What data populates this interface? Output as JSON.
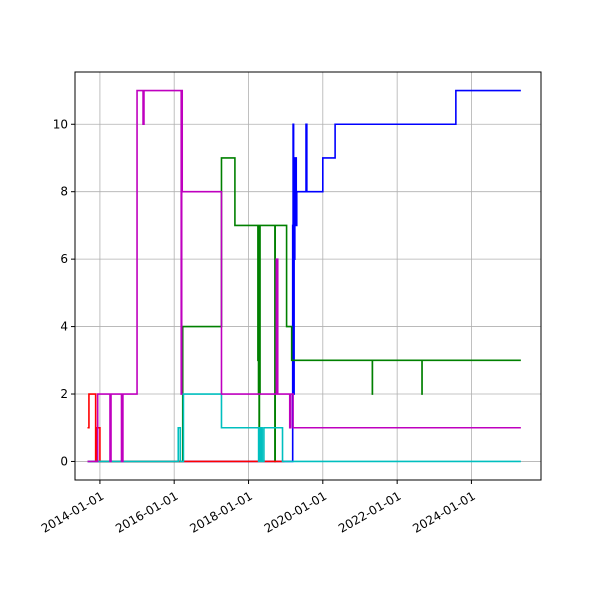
{
  "chart_data": {
    "type": "line",
    "title": "",
    "xlabel": "",
    "ylabel": "",
    "x_axis_type": "date",
    "xlim": [
      "2013-05-01",
      "2025-11-15"
    ],
    "ylim": [
      -0.55,
      11.55
    ],
    "grid": true,
    "legend": "none",
    "step": "post",
    "x_ticks": [
      "2014-01-01",
      "2016-01-01",
      "2018-01-01",
      "2020-01-01",
      "2022-01-01",
      "2024-01-01"
    ],
    "y_ticks": [
      0,
      2,
      4,
      6,
      8,
      10
    ],
    "series": [
      {
        "color": "#0000ff",
        "points": [
          [
            "2013-09-01",
            0
          ],
          [
            "2019-03-10",
            0
          ],
          [
            "2019-03-11",
            7
          ],
          [
            "2019-03-15",
            10
          ],
          [
            "2019-03-20",
            2
          ],
          [
            "2019-03-25",
            6
          ],
          [
            "2019-04-01",
            9
          ],
          [
            "2019-04-15",
            7
          ],
          [
            "2019-04-20",
            8
          ],
          [
            "2019-05-20",
            8
          ],
          [
            "2019-07-20",
            10
          ],
          [
            "2019-07-28",
            8
          ],
          [
            "2020-01-01",
            9
          ],
          [
            "2020-05-01",
            10
          ],
          [
            "2023-08-01",
            11
          ],
          [
            "2025-05-01",
            11
          ]
        ]
      },
      {
        "color": "#008000",
        "points": [
          [
            "2013-09-01",
            0
          ],
          [
            "2016-03-20",
            0
          ],
          [
            "2016-03-25",
            4
          ],
          [
            "2017-04-10",
            9
          ],
          [
            "2017-08-20",
            7
          ],
          [
            "2018-04-01",
            7
          ],
          [
            "2018-04-03",
            3
          ],
          [
            "2018-04-06",
            7
          ],
          [
            "2018-04-09",
            2
          ],
          [
            "2018-04-12",
            7
          ],
          [
            "2018-04-15",
            1
          ],
          [
            "2018-04-18",
            7
          ],
          [
            "2018-04-21",
            2
          ],
          [
            "2018-04-24",
            7
          ],
          [
            "2018-09-15",
            7
          ],
          [
            "2018-09-17",
            0
          ],
          [
            "2018-09-20",
            7
          ],
          [
            "2019-01-10",
            4
          ],
          [
            "2019-03-01",
            3
          ],
          [
            "2021-05-01",
            3
          ],
          [
            "2021-05-02",
            2
          ],
          [
            "2021-05-03",
            3
          ],
          [
            "2022-09-01",
            3
          ],
          [
            "2022-09-02",
            2
          ],
          [
            "2022-09-03",
            3
          ],
          [
            "2025-05-01",
            3
          ]
        ]
      },
      {
        "color": "#ff0000",
        "points": [
          [
            "2013-09-01",
            1
          ],
          [
            "2013-09-15",
            2
          ],
          [
            "2013-11-20",
            0
          ],
          [
            "2013-12-01",
            1
          ],
          [
            "2014-01-01",
            0
          ],
          [
            "2018-12-20",
            0
          ]
        ]
      },
      {
        "color": "#00bfbf",
        "points": [
          [
            "2013-09-01",
            0
          ],
          [
            "2016-02-10",
            1
          ],
          [
            "2016-03-01",
            0
          ],
          [
            "2016-04-01",
            2
          ],
          [
            "2017-04-10",
            1
          ],
          [
            "2018-04-10",
            0
          ],
          [
            "2018-04-14",
            1
          ],
          [
            "2018-04-18",
            0
          ],
          [
            "2018-04-22",
            1
          ],
          [
            "2018-04-26",
            0
          ],
          [
            "2018-04-30",
            1
          ],
          [
            "2018-05-15",
            0
          ],
          [
            "2018-06-01",
            1
          ],
          [
            "2018-12-01",
            0
          ],
          [
            "2025-05-01",
            0
          ]
        ]
      },
      {
        "color": "#bf00bf",
        "points": [
          [
            "2013-09-01",
            0
          ],
          [
            "2013-12-10",
            2
          ],
          [
            "2014-04-10",
            0
          ],
          [
            "2014-04-20",
            2
          ],
          [
            "2014-08-01",
            0
          ],
          [
            "2014-08-15",
            2
          ],
          [
            "2015-01-01",
            11
          ],
          [
            "2015-03-01",
            10
          ],
          [
            "2015-03-10",
            11
          ],
          [
            "2016-03-10",
            2
          ],
          [
            "2016-03-15",
            11
          ],
          [
            "2016-03-20",
            8
          ],
          [
            "2017-04-10",
            2
          ],
          [
            "2018-10-01",
            6
          ],
          [
            "2018-10-15",
            2
          ],
          [
            "2019-02-10",
            1
          ],
          [
            "2019-02-20",
            2
          ],
          [
            "2019-03-15",
            1
          ],
          [
            "2025-05-01",
            1
          ]
        ]
      }
    ]
  }
}
